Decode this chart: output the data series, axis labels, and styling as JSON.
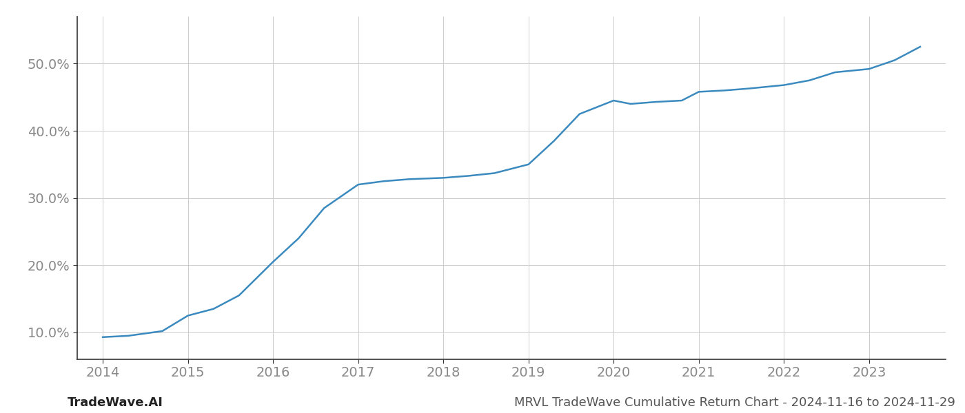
{
  "x": [
    2014.0,
    2014.3,
    2014.7,
    2015.0,
    2015.3,
    2015.6,
    2016.0,
    2016.3,
    2016.6,
    2017.0,
    2017.3,
    2017.6,
    2018.0,
    2018.3,
    2018.6,
    2019.0,
    2019.3,
    2019.6,
    2020.0,
    2020.2,
    2020.5,
    2020.8,
    2021.0,
    2021.3,
    2021.6,
    2022.0,
    2022.3,
    2022.6,
    2023.0,
    2023.3,
    2023.6
  ],
  "y": [
    9.3,
    9.5,
    10.2,
    12.5,
    13.5,
    15.5,
    20.5,
    24.0,
    28.5,
    32.0,
    32.5,
    32.8,
    33.0,
    33.3,
    33.7,
    35.0,
    38.5,
    42.5,
    44.5,
    44.0,
    44.3,
    44.5,
    45.8,
    46.0,
    46.3,
    46.8,
    47.5,
    48.7,
    49.2,
    50.5,
    52.5
  ],
  "line_color": "#3a8abf",
  "line_width": 1.8,
  "background_color": "#ffffff",
  "grid_color": "#cccccc",
  "title": "MRVL TradeWave Cumulative Return Chart - 2024-11-16 to 2024-11-29",
  "footer_left": "TradeWave.AI",
  "xlim": [
    2013.7,
    2023.9
  ],
  "ylim": [
    6.0,
    57.0
  ],
  "xticks": [
    2014,
    2015,
    2016,
    2017,
    2018,
    2019,
    2020,
    2021,
    2022,
    2023
  ],
  "yticks": [
    10.0,
    20.0,
    30.0,
    40.0,
    50.0
  ],
  "tick_fontsize": 14,
  "title_fontsize": 13,
  "footer_fontsize": 13
}
